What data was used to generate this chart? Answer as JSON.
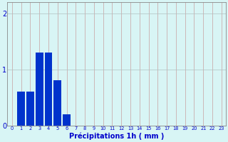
{
  "categories": [
    0,
    1,
    2,
    3,
    4,
    5,
    6,
    7,
    8,
    9,
    10,
    11,
    12,
    13,
    14,
    15,
    16,
    17,
    18,
    19,
    20,
    21,
    22,
    23
  ],
  "values": [
    0,
    0.6,
    0.6,
    1.3,
    1.3,
    0.8,
    0.2,
    0,
    0,
    0,
    0,
    0,
    0,
    0,
    0,
    0,
    0,
    0,
    0,
    0,
    0,
    0,
    0,
    0
  ],
  "bar_color": "#0033cc",
  "background_color": "#d8f5f5",
  "vgrid_color": "#c8a0a0",
  "hgrid_color": "#b0c0c0",
  "text_color": "#0000cc",
  "xlabel": "Précipitations 1h ( mm )",
  "ylim": [
    0,
    2.2
  ],
  "yticks": [
    0,
    1,
    2
  ],
  "xlim": [
    -0.5,
    23.5
  ],
  "bar_width": 0.85
}
